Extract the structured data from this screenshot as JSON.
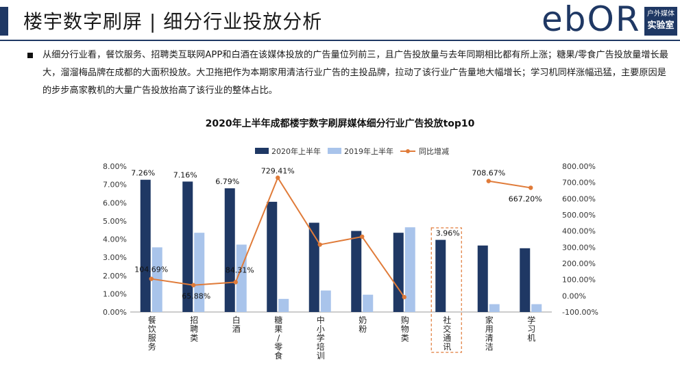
{
  "header": {
    "title": "楼宇数字刷屏 | 细分行业投放分析",
    "logo_word": "ebOR",
    "logo_badge_line1": "户外媒体",
    "logo_badge_line2": "实验室"
  },
  "summary": "从细分行业看，餐饮服务、招聘类互联网APP和白酒在该媒体投放的广告量位列前三，且广告投放量与去年同期相比都有所上涨；糖果/零食广告投放量增长最大，溜溜梅品牌在成都的大面积投放。大卫拖把作为本期家用清洁行业广告的主投品牌，拉动了该行业广告量地大幅增长；学习机同样涨幅迅猛，主要原因是的步步高家教机的大量广告投放抬高了该行业的整体占比。",
  "colors": {
    "brand": "#1f3864",
    "series2020": "#1f3864",
    "series2019": "#a9c4eb",
    "yoy": "#e07b39",
    "highlight_box": "#e07b39"
  },
  "chart_data": {
    "type": "bar",
    "title": "2020年上半年成都楼宇数字刷屏媒体细分行业广告投放top10",
    "categories": [
      "餐饮服务",
      "招聘类",
      "白酒",
      "糖果/零食",
      "中小学培训",
      "奶粉",
      "购物类",
      "社交通讯",
      "家用清洁",
      "学习机"
    ],
    "legend_placement": "top",
    "series": [
      {
        "name": "2020年上半年",
        "axis": "left",
        "type": "bar",
        "values": [
          7.26,
          7.16,
          6.79,
          6.05,
          4.9,
          4.45,
          4.35,
          3.96,
          3.65,
          3.5
        ]
      },
      {
        "name": "2019年上半年",
        "axis": "left",
        "type": "bar",
        "values": [
          3.55,
          4.35,
          3.7,
          0.72,
          1.18,
          0.95,
          4.65,
          null,
          0.43,
          0.43
        ]
      },
      {
        "name": "同比增减",
        "axis": "right",
        "type": "line",
        "values": [
          104.69,
          65.88,
          84.31,
          729.41,
          316,
          365,
          -8,
          null,
          708.67,
          667.2
        ]
      }
    ],
    "data_labels": {
      "2020": [
        {
          "index": 0,
          "text": "7.26%"
        },
        {
          "index": 1,
          "text": "7.16%"
        },
        {
          "index": 2,
          "text": "6.79%"
        },
        {
          "index": 7,
          "text": "3.96%"
        }
      ],
      "yoy": [
        {
          "index": 0,
          "text": "104.69%"
        },
        {
          "index": 1,
          "text": "65.88%"
        },
        {
          "index": 2,
          "text": "84.31%"
        },
        {
          "index": 3,
          "text": "729.41%"
        },
        {
          "index": 8,
          "text": "708.67%"
        },
        {
          "index": 9,
          "text": "667.20%"
        }
      ]
    },
    "highlighted_category_index": 7,
    "y_left": {
      "ylim": [
        0,
        8
      ],
      "ticks": [
        "0.00%",
        "1.00%",
        "2.00%",
        "3.00%",
        "4.00%",
        "5.00%",
        "6.00%",
        "7.00%",
        "8.00%"
      ]
    },
    "y_right": {
      "ylim": [
        -100,
        800
      ],
      "ticks": [
        "-100.00%",
        "0.00%",
        "100.00%",
        "200.00%",
        "300.00%",
        "400.00%",
        "500.00%",
        "600.00%",
        "700.00%",
        "800.00%"
      ]
    },
    "grid": false
  }
}
